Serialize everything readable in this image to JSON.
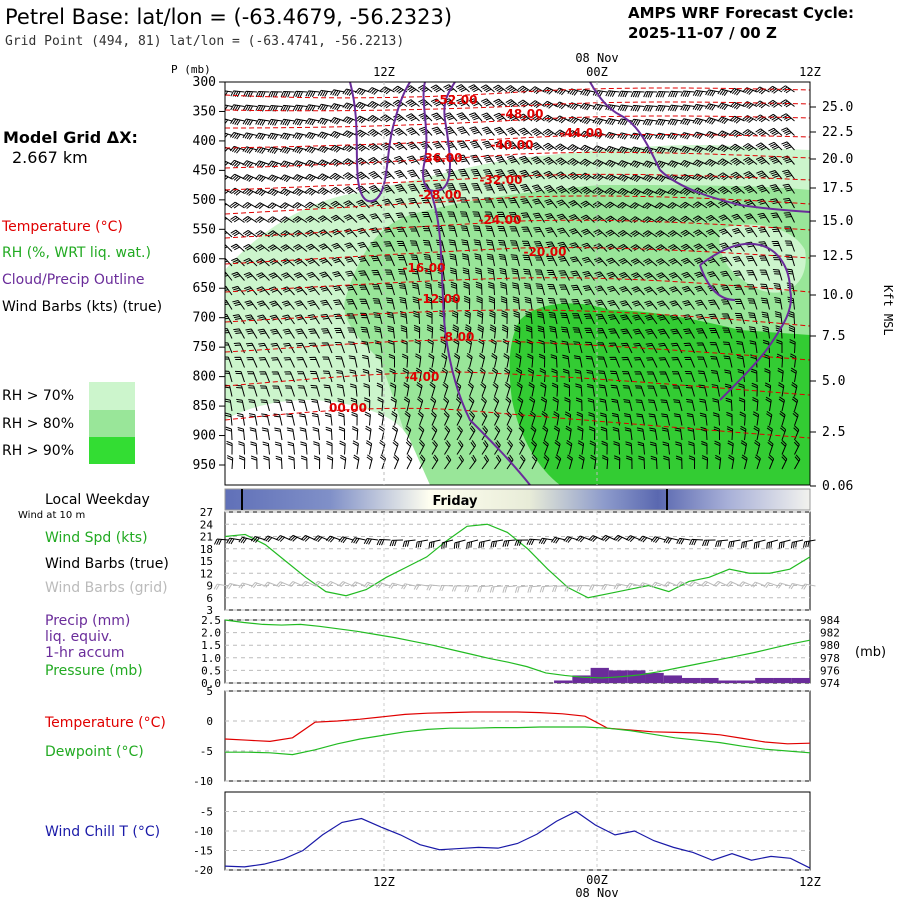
{
  "header": {
    "title": "Petrel Base:  lat/lon = (-63.4679, -56.2323)",
    "subtitle": "Grid Point (494, 81) lat/lon = (-63.4741, -56.2213)",
    "cycle_line1": "AMPS WRF Forecast Cycle:",
    "cycle_line2": "2025-11-07 / 00  Z"
  },
  "time_axis": {
    "ticks": [
      "12Z",
      "00Z",
      "12Z"
    ],
    "date_label": "08 Nov"
  },
  "model_grid": {
    "label": "Model Grid ΔX:",
    "value": "2.667 km"
  },
  "legend": {
    "temperature": "Temperature (°C)",
    "rh": "RH (%, WRT liq. wat.)",
    "cloud": "Cloud/Precip Outline",
    "wind": "Wind Barbs (kts) (true)",
    "rh70": "RH > 70%",
    "rh80": "RH > 80%",
    "rh90": "RH > 90%"
  },
  "colors": {
    "temperature": "#e00000",
    "rh70": "#ccf5cc",
    "rh80": "#99e699",
    "rh90": "#33cc33",
    "cloud": "#6a2c9a",
    "wind_chill": "#1a1aa8",
    "dewpoint": "#22bb22",
    "precip": "#6a2c9a"
  },
  "chart_data": [
    {
      "type": "contour",
      "title": "Vertical cross-section",
      "ylabel": "P (mb)",
      "y2label": "Kft MSL",
      "pressure_ticks": [
        300,
        350,
        400,
        450,
        500,
        550,
        600,
        650,
        700,
        750,
        800,
        850,
        900,
        950
      ],
      "height_ticks": [
        "25.0",
        "22.5",
        "20.0",
        "17.5",
        "15.0",
        "12.5",
        "10.0",
        "7.5",
        "5.0",
        "2.5",
        "0.06"
      ],
      "temperature_labels": [
        "-52.00",
        "-48.00",
        "-44.00",
        "-40.00",
        "-36.00",
        "-32.00",
        "-28.00",
        "-24.00",
        "-20.00",
        "-16.00",
        "-12.00",
        "-8.00",
        "-4.00",
        "00.00"
      ]
    },
    {
      "type": "line",
      "title": "Wind at 10 m",
      "series_label": "Wind Spd (kts)",
      "barbs_true_label": "Wind Barbs (true)",
      "barbs_grid_label": "Wind Barbs (grid)",
      "y_ticks": [
        "27",
        "24",
        "21",
        "18",
        "15",
        "12",
        "9",
        "6",
        "3"
      ],
      "ylim": [
        3,
        27
      ],
      "values": [
        21,
        21.5,
        19,
        15,
        11,
        7.5,
        6.5,
        8,
        11,
        13.5,
        16,
        20,
        23.5,
        24,
        22,
        18,
        13,
        8.5,
        6,
        7,
        8,
        9,
        7.5,
        10,
        11,
        13,
        12,
        12,
        13,
        16
      ]
    },
    {
      "type": "bar_line",
      "precip_label_lines": [
        "Precip (mm)",
        "liq. equiv.",
        "1-hr accum"
      ],
      "pressure_label": "Pressure (mb)",
      "right_unit": "(mb)",
      "y_ticks": [
        "2.5",
        "2.0",
        "1.5",
        "1.0",
        "0.5",
        "0.0"
      ],
      "y2_ticks": [
        "984",
        "982",
        "980",
        "978",
        "976",
        "974"
      ],
      "precip": [
        0,
        0,
        0,
        0,
        0,
        0,
        0,
        0,
        0,
        0,
        0,
        0,
        0,
        0,
        0,
        0,
        0,
        0,
        0.1,
        0.3,
        0.6,
        0.5,
        0.5,
        0.4,
        0.3,
        0.2,
        0.2,
        0.1,
        0.1,
        0.2,
        0.2,
        0.2
      ],
      "pressure": [
        984.0,
        983.6,
        983.3,
        983.2,
        983.3,
        983.0,
        982.6,
        982.2,
        981.7,
        981.2,
        980.6,
        980.0,
        979.3,
        978.6,
        977.9,
        977.3,
        976.6,
        975.6,
        975.2,
        974.9,
        974.8,
        975.0,
        975.3,
        975.8,
        976.4,
        977.0,
        977.6,
        978.2,
        978.8,
        979.5,
        980.2,
        980.8
      ]
    },
    {
      "type": "line",
      "temp_label": "Temperature (°C)",
      "dew_label": "Dewpoint (°C)",
      "y_ticks": [
        "5",
        "0",
        "-5",
        "-10"
      ],
      "ylim": [
        -10,
        5
      ],
      "temperature": [
        -3,
        -3.2,
        -3.4,
        -2.8,
        -0.2,
        0,
        0.3,
        0.7,
        1.1,
        1.3,
        1.4,
        1.5,
        1.5,
        1.5,
        1.4,
        1.2,
        0.8,
        -1.2,
        -1.5,
        -1.8,
        -1.9,
        -2.0,
        -2.3,
        -2.9,
        -3.5,
        -3.8,
        -3.7
      ],
      "dewpoint": [
        -5.2,
        -5.2,
        -5.3,
        -5.6,
        -4.8,
        -3.8,
        -3.0,
        -2.4,
        -1.8,
        -1.4,
        -1.2,
        -1.2,
        -1.1,
        -1.1,
        -1.0,
        -1.0,
        -1.0,
        -1.2,
        -1.6,
        -2.2,
        -2.8,
        -3.2,
        -3.6,
        -4.2,
        -4.7,
        -5.0,
        -5.3
      ]
    },
    {
      "type": "line",
      "label": "Wind Chill T (°C)",
      "y_ticks": [
        "-5",
        "-10",
        "-15",
        "-20"
      ],
      "ylim": [
        -20,
        0
      ],
      "values": [
        -19,
        -19.2,
        -18.5,
        -17.2,
        -15,
        -11,
        -7.8,
        -6.8,
        -9,
        -11,
        -13.5,
        -14.8,
        -14.5,
        -14.2,
        -14.4,
        -13.2,
        -10.8,
        -7.5,
        -5,
        -8.5,
        -11,
        -10,
        -12.5,
        -14.2,
        -15.5,
        -17.5,
        -15.8,
        -17.5,
        -16.5,
        -17,
        -19.5
      ]
    }
  ],
  "day_bar": {
    "label": "Friday",
    "local_weekday": "Local Weekday",
    "wind_note": "Wind at 10 m"
  }
}
